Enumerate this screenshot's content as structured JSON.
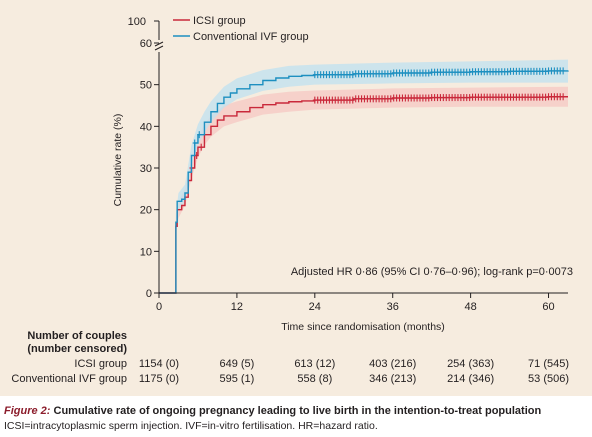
{
  "colors": {
    "icsi": "#c9283a",
    "icsi_band": "#f5c8c3",
    "ivf": "#1d8fc0",
    "ivf_band": "#bfe1f0",
    "caption_label": "#8c1d2c"
  },
  "chart_data": {
    "type": "line",
    "title": "",
    "xlabel": "Time since randomisation (months)",
    "ylabel": "Cumulative rate (%)",
    "xlim": [
      0,
      63
    ],
    "ylim": [
      0,
      66
    ],
    "x_ticks": [
      "0",
      "12",
      "24",
      "36",
      "48",
      "60"
    ],
    "y_ticks": [
      "0",
      "10",
      "20",
      "30",
      "40",
      "50",
      "60"
    ],
    "y_break_label": "100",
    "legend": [
      "ICSI group",
      "Conventional IVF group"
    ],
    "legend_position": "top-left",
    "annotation": "Adjusted HR 0·86 (95% CI 0·76–0·96); log-rank p=0·0073",
    "series": [
      {
        "name": "ICSI group",
        "points": [
          [
            0,
            0
          ],
          [
            2.5,
            0
          ],
          [
            2.6,
            16
          ],
          [
            2.8,
            20
          ],
          [
            3.5,
            21
          ],
          [
            4,
            23
          ],
          [
            4.5,
            27
          ],
          [
            5,
            30
          ],
          [
            5.5,
            33
          ],
          [
            6,
            35
          ],
          [
            7,
            38
          ],
          [
            8,
            40
          ],
          [
            9,
            41.5
          ],
          [
            10,
            42.5
          ],
          [
            12,
            43.5
          ],
          [
            14,
            44.5
          ],
          [
            16,
            45.2
          ],
          [
            18,
            45.6
          ],
          [
            20,
            45.9
          ],
          [
            22,
            46.1
          ],
          [
            24,
            46.3
          ],
          [
            30,
            46.6
          ],
          [
            36,
            46.8
          ],
          [
            42,
            46.9
          ],
          [
            48,
            47
          ],
          [
            54,
            47
          ],
          [
            60,
            47.1
          ],
          [
            63,
            47.1
          ]
        ],
        "lower": [
          [
            2.6,
            14
          ],
          [
            3,
            18
          ],
          [
            4,
            21
          ],
          [
            5,
            27.5
          ],
          [
            6,
            32.5
          ],
          [
            7,
            35.5
          ],
          [
            8,
            37.5
          ],
          [
            10,
            40
          ],
          [
            12,
            41
          ],
          [
            16,
            42.8
          ],
          [
            20,
            43.5
          ],
          [
            24,
            44
          ],
          [
            36,
            44.5
          ],
          [
            48,
            44.7
          ],
          [
            63,
            44.7
          ]
        ],
        "upper": [
          [
            2.6,
            18
          ],
          [
            3,
            22
          ],
          [
            4,
            25
          ],
          [
            5,
            32.5
          ],
          [
            6,
            37.5
          ],
          [
            7,
            40.5
          ],
          [
            8,
            42.5
          ],
          [
            10,
            45
          ],
          [
            12,
            46
          ],
          [
            16,
            47.6
          ],
          [
            20,
            48.3
          ],
          [
            24,
            48.6
          ],
          [
            36,
            49.1
          ],
          [
            48,
            49.3
          ],
          [
            63,
            49.5
          ]
        ],
        "censor_x": [
          5,
          5.8,
          6.5
        ]
      },
      {
        "name": "Conventional IVF group",
        "points": [
          [
            0,
            0
          ],
          [
            2.5,
            0
          ],
          [
            2.6,
            17
          ],
          [
            2.8,
            22
          ],
          [
            3.5,
            22.5
          ],
          [
            4,
            24
          ],
          [
            4.5,
            29
          ],
          [
            5,
            33
          ],
          [
            5.5,
            36
          ],
          [
            6,
            38
          ],
          [
            7,
            41
          ],
          [
            8,
            43.5
          ],
          [
            9,
            45.5
          ],
          [
            10,
            47
          ],
          [
            11,
            48
          ],
          [
            12,
            49
          ],
          [
            14,
            50
          ],
          [
            16,
            51
          ],
          [
            18,
            51.6
          ],
          [
            20,
            52
          ],
          [
            22,
            52.2
          ],
          [
            24,
            52.4
          ],
          [
            30,
            52.6
          ],
          [
            36,
            52.8
          ],
          [
            42,
            53
          ],
          [
            48,
            53.1
          ],
          [
            54,
            53.2
          ],
          [
            60,
            53.3
          ],
          [
            63,
            53.4
          ]
        ],
        "lower": [
          [
            2.6,
            15
          ],
          [
            3,
            20
          ],
          [
            4,
            22
          ],
          [
            5,
            30.5
          ],
          [
            6,
            35.5
          ],
          [
            7,
            38.5
          ],
          [
            8,
            41
          ],
          [
            10,
            44.5
          ],
          [
            12,
            46.5
          ],
          [
            16,
            48.5
          ],
          [
            20,
            49.5
          ],
          [
            24,
            50
          ],
          [
            36,
            50.3
          ],
          [
            48,
            50.5
          ],
          [
            63,
            50.5
          ]
        ],
        "upper": [
          [
            2.6,
            19
          ],
          [
            3,
            24
          ],
          [
            4,
            26
          ],
          [
            5,
            35.5
          ],
          [
            6,
            40.5
          ],
          [
            7,
            43.5
          ],
          [
            8,
            46
          ],
          [
            10,
            49.5
          ],
          [
            12,
            51.5
          ],
          [
            16,
            53.5
          ],
          [
            20,
            54.5
          ],
          [
            24,
            54.8
          ],
          [
            36,
            55.3
          ],
          [
            48,
            55.6
          ],
          [
            63,
            56
          ]
        ],
        "censor_x": [
          5.5,
          6.2
        ]
      }
    ]
  },
  "risk_table": {
    "heading_line1": "Number of couples",
    "heading_line2": "(number censored)",
    "rows": [
      {
        "label": "ICSI group",
        "values": [
          "1154 (0)",
          "649 (5)",
          "613 (12)",
          "403 (216)",
          "254 (363)",
          "71 (545)"
        ]
      },
      {
        "label": "Conventional IVF group",
        "values": [
          "1175 (0)",
          "595 (1)",
          "558 (8)",
          "346 (213)",
          "214 (346)",
          "53 (506)"
        ]
      }
    ]
  },
  "caption": {
    "figure_label": "Figure 2:",
    "title": "Cumulative rate of ongoing pregnancy leading to live birth in the intention-to-treat population",
    "footnote": "ICSI=intracytoplasmic sperm injection. IVF=in-vitro fertilisation. HR=hazard ratio."
  }
}
